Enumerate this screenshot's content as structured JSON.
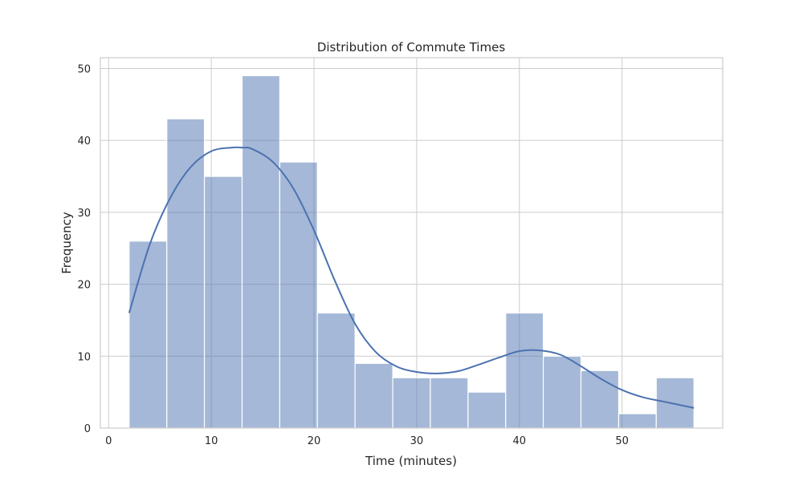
{
  "chart_data": {
    "type": "bar",
    "title": "Distribution of Commute Times",
    "xlabel": "Time (minutes)",
    "ylabel": "Frequency",
    "xlim": [
      -0.8,
      59.8
    ],
    "ylim": [
      0,
      51.5
    ],
    "xticks": [
      0,
      10,
      20,
      30,
      40,
      50
    ],
    "yticks": [
      0,
      10,
      20,
      30,
      40,
      50
    ],
    "grid": true,
    "legend": "none",
    "bins": [
      {
        "x0": 2.0,
        "x1": 5.67,
        "count": 26
      },
      {
        "x0": 5.67,
        "x1": 9.33,
        "count": 43
      },
      {
        "x0": 9.33,
        "x1": 13.0,
        "count": 35
      },
      {
        "x0": 13.0,
        "x1": 16.67,
        "count": 49
      },
      {
        "x0": 16.67,
        "x1": 20.33,
        "count": 37
      },
      {
        "x0": 20.33,
        "x1": 24.0,
        "count": 16
      },
      {
        "x0": 24.0,
        "x1": 27.67,
        "count": 9
      },
      {
        "x0": 27.67,
        "x1": 31.33,
        "count": 7
      },
      {
        "x0": 31.33,
        "x1": 35.0,
        "count": 7
      },
      {
        "x0": 35.0,
        "x1": 38.67,
        "count": 5
      },
      {
        "x0": 38.67,
        "x1": 42.33,
        "count": 16
      },
      {
        "x0": 42.33,
        "x1": 46.0,
        "count": 10
      },
      {
        "x0": 46.0,
        "x1": 49.67,
        "count": 8
      },
      {
        "x0": 49.67,
        "x1": 53.33,
        "count": 2
      },
      {
        "x0": 53.33,
        "x1": 57.0,
        "count": 7
      }
    ],
    "kde": {
      "x": [
        2,
        4,
        6,
        8,
        10,
        12,
        13,
        14,
        16,
        18,
        20,
        22,
        24,
        26,
        28,
        30,
        32,
        34,
        36,
        38,
        40,
        42,
        44,
        46,
        48,
        50,
        52,
        54,
        57
      ],
      "y": [
        16,
        25.5,
        32,
        36.3,
        38.5,
        39,
        39,
        38.8,
        37,
        33.3,
        27.5,
        20.6,
        14.5,
        10.6,
        8.6,
        7.8,
        7.6,
        7.9,
        8.8,
        9.8,
        10.7,
        10.8,
        10.2,
        8.6,
        6.8,
        5.3,
        4.3,
        3.7,
        2.8
      ]
    },
    "colors": {
      "bar": "#4c72b0",
      "line": "#4c72b0",
      "grid": "#cccccc"
    }
  }
}
